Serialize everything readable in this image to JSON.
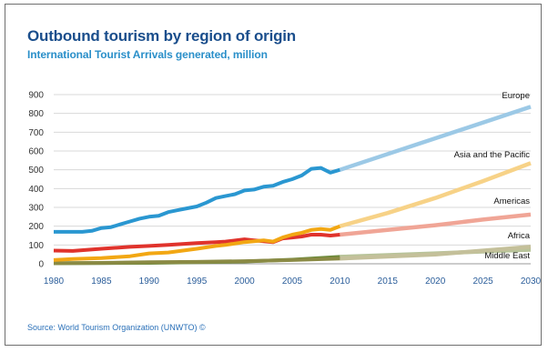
{
  "title": "Outbound tourism by region of origin",
  "subtitle": "International Tourist Arrivals generated, million",
  "source": "Source: World Tourism Organization (UNWTO) ©",
  "chart_data": {
    "type": "line",
    "title": "Outbound tourism by region of origin",
    "subtitle": "International Tourist Arrivals generated, million",
    "xlabel": "",
    "ylabel": "",
    "xlim": [
      1980,
      2030
    ],
    "ylim": [
      0,
      900
    ],
    "x_ticks": [
      1980,
      1985,
      1990,
      1995,
      2000,
      2005,
      2010,
      2015,
      2020,
      2025,
      2030
    ],
    "y_ticks": [
      0,
      100,
      200,
      300,
      400,
      500,
      600,
      700,
      800,
      900
    ],
    "grid": "horizontal",
    "legend": "direct labels at line ends",
    "forecast_start": 2010,
    "series": [
      {
        "name": "Europe",
        "color": "#2a97d1",
        "forecast_color": "#9cc9e6",
        "actual": {
          "x": [
            1980,
            1981,
            1982,
            1983,
            1984,
            1985,
            1986,
            1987,
            1988,
            1989,
            1990,
            1991,
            1992,
            1993,
            1994,
            1995,
            1996,
            1997,
            1998,
            1999,
            2000,
            2001,
            2002,
            2003,
            2004,
            2005,
            2006,
            2007,
            2008,
            2009,
            2010
          ],
          "y": [
            170,
            170,
            170,
            170,
            175,
            190,
            195,
            210,
            225,
            240,
            250,
            255,
            275,
            285,
            295,
            305,
            325,
            350,
            360,
            370,
            390,
            395,
            410,
            415,
            435,
            450,
            470,
            505,
            510,
            485,
            500
          ]
        },
        "forecast": {
          "x": [
            2010,
            2030
          ],
          "y": [
            500,
            835
          ]
        }
      },
      {
        "name": "Asia and the Pacific",
        "color": "#f2a713",
        "forecast_color": "#f7d287",
        "actual": {
          "x": [
            1980,
            1982,
            1985,
            1988,
            1990,
            1992,
            1995,
            1997,
            1998,
            2000,
            2001,
            2002,
            2003,
            2004,
            2005,
            2006,
            2007,
            2008,
            2009,
            2010
          ],
          "y": [
            20,
            25,
            30,
            40,
            55,
            60,
            80,
            95,
            100,
            115,
            120,
            125,
            118,
            140,
            155,
            165,
            180,
            185,
            180,
            200
          ]
        },
        "forecast": {
          "x": [
            2010,
            2015,
            2020,
            2025,
            2030
          ],
          "y": [
            200,
            270,
            350,
            440,
            535
          ]
        }
      },
      {
        "name": "Americas",
        "color": "#e0332c",
        "forecast_color": "#f0a596",
        "actual": {
          "x": [
            1980,
            1982,
            1985,
            1988,
            1990,
            1992,
            1995,
            1997,
            1998,
            2000,
            2001,
            2002,
            2003,
            2004,
            2005,
            2006,
            2007,
            2008,
            2009,
            2010
          ],
          "y": [
            70,
            68,
            80,
            90,
            95,
            100,
            110,
            115,
            118,
            130,
            125,
            120,
            115,
            135,
            140,
            145,
            155,
            155,
            150,
            155
          ]
        },
        "forecast": {
          "x": [
            2010,
            2015,
            2020,
            2025,
            2030
          ],
          "y": [
            155,
            180,
            205,
            235,
            262
          ]
        }
      },
      {
        "name": "Africa",
        "color": "#8a8a44",
        "forecast_color": "#c4c09a",
        "actual": {
          "x": [
            1980,
            1985,
            1990,
            1995,
            2000,
            2005,
            2010
          ],
          "y": [
            3,
            5,
            8,
            10,
            14,
            20,
            28
          ]
        },
        "forecast": {
          "x": [
            2010,
            2020,
            2030
          ],
          "y": [
            28,
            50,
            90
          ]
        }
      },
      {
        "name": "Middle East",
        "color": "#6b8a3a",
        "forecast_color": "#b8c49a",
        "actual": {
          "x": [
            1980,
            1985,
            1990,
            1995,
            2000,
            2005,
            2010
          ],
          "y": [
            3,
            4,
            5,
            8,
            12,
            22,
            37
          ]
        },
        "forecast": {
          "x": [
            2010,
            2020,
            2030
          ],
          "y": [
            37,
            55,
            75
          ]
        }
      }
    ]
  }
}
